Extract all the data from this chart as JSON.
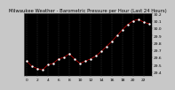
{
  "title": "Milwaukee Weather - Barometric Pressure per Hour (Last 24 Hours)",
  "background_color": "#c8c8c8",
  "plot_bg_color": "#000000",
  "hours": [
    0,
    1,
    2,
    3,
    4,
    5,
    6,
    7,
    8,
    9,
    10,
    11,
    12,
    13,
    14,
    15,
    16,
    17,
    18,
    19,
    20,
    21,
    22,
    23
  ],
  "pressure": [
    29.55,
    29.48,
    29.45,
    29.43,
    29.5,
    29.52,
    29.58,
    29.6,
    29.65,
    29.58,
    29.52,
    29.55,
    29.58,
    29.62,
    29.68,
    29.75,
    29.82,
    29.9,
    29.98,
    30.05,
    30.1,
    30.12,
    30.08,
    30.06
  ],
  "line_color": "#ff0000",
  "marker_color": "#000000",
  "marker_edge_color": "#ffffff",
  "grid_color": "#555555",
  "tick_label_fontsize": 3.2,
  "title_fontsize": 3.8,
  "ylim": [
    29.35,
    30.2
  ],
  "ytick_values": [
    29.4,
    29.5,
    29.6,
    29.7,
    29.8,
    29.9,
    30.0,
    30.1,
    30.2
  ],
  "ytick_labels": [
    "29.4",
    "29.5",
    "29.6",
    "29.7",
    "29.8",
    "29.9",
    "30.0",
    "30.1",
    "30.2"
  ],
  "xtick_values": [
    0,
    2,
    4,
    6,
    8,
    10,
    12,
    14,
    16,
    18,
    20,
    22
  ],
  "xtick_labels": [
    "0",
    "2",
    "4",
    "6",
    "8",
    "10",
    "12",
    "14",
    "16",
    "18",
    "20",
    "22"
  ]
}
